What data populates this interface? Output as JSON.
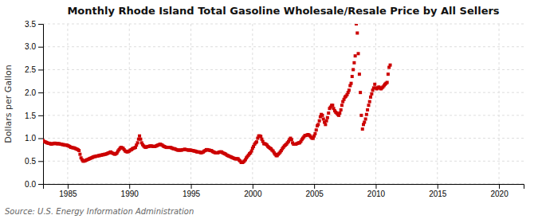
{
  "chart_data": {
    "type": "scatter",
    "title": "Monthly Rhode Island Total Gasoline Wholesale/Resale Price by All Sellers",
    "ylabel": "Dollars per Gallon",
    "annotations": [
      "Source: U.S. Energy Information Administration"
    ],
    "color": "#cc0000",
    "marker": "square",
    "grid": true,
    "xlim": [
      1983,
      2022
    ],
    "ylim": [
      0.0,
      3.5
    ],
    "xticks": [
      1985,
      1990,
      1995,
      2000,
      2005,
      2010,
      2015,
      2020
    ],
    "yticks": [
      {
        "value": 0.0,
        "label": "0.0"
      },
      0.5,
      {
        "value": 1.0,
        "label": "1.0"
      },
      1.5,
      {
        "value": 2.0,
        "label": "2.0"
      },
      2.5,
      {
        "value": 3.0,
        "label": "3.0"
      },
      3.5
    ],
    "x": [
      1983.0,
      1983.08,
      1983.17,
      1983.25,
      1983.33,
      1983.42,
      1983.5,
      1983.58,
      1983.67,
      1983.75,
      1983.83,
      1983.92,
      1984.0,
      1984.08,
      1984.17,
      1984.25,
      1984.33,
      1984.42,
      1984.5,
      1984.58,
      1984.67,
      1984.75,
      1984.83,
      1984.92,
      1985.0,
      1985.08,
      1985.17,
      1985.25,
      1985.33,
      1985.42,
      1985.5,
      1985.58,
      1985.67,
      1985.75,
      1985.83,
      1985.92,
      1986.0,
      1986.08,
      1986.17,
      1986.25,
      1986.33,
      1986.42,
      1986.5,
      1986.58,
      1986.67,
      1986.75,
      1986.83,
      1986.92,
      1987.0,
      1987.08,
      1987.17,
      1987.25,
      1987.33,
      1987.42,
      1987.5,
      1987.58,
      1987.67,
      1987.75,
      1987.83,
      1987.92,
      1988.0,
      1988.08,
      1988.17,
      1988.25,
      1988.33,
      1988.42,
      1988.5,
      1988.58,
      1988.67,
      1988.75,
      1988.83,
      1988.92,
      1989.0,
      1989.08,
      1989.17,
      1989.25,
      1989.33,
      1989.42,
      1989.5,
      1989.58,
      1989.67,
      1989.75,
      1989.83,
      1989.92,
      1990.0,
      1990.08,
      1990.17,
      1990.25,
      1990.33,
      1990.42,
      1990.5,
      1990.58,
      1990.67,
      1990.75,
      1990.83,
      1990.92,
      1991.0,
      1991.08,
      1991.17,
      1991.25,
      1991.33,
      1991.42,
      1991.5,
      1991.58,
      1991.67,
      1991.75,
      1991.83,
      1991.92,
      1992.0,
      1992.08,
      1992.17,
      1992.25,
      1992.33,
      1992.42,
      1992.5,
      1992.58,
      1992.67,
      1992.75,
      1992.83,
      1992.92,
      1993.0,
      1993.08,
      1993.17,
      1993.25,
      1993.33,
      1993.42,
      1993.5,
      1993.58,
      1993.67,
      1993.75,
      1993.83,
      1993.92,
      1994.0,
      1994.08,
      1994.17,
      1994.25,
      1994.33,
      1994.42,
      1994.5,
      1994.58,
      1994.67,
      1994.75,
      1994.83,
      1994.92,
      1995.0,
      1995.08,
      1995.17,
      1995.25,
      1995.33,
      1995.42,
      1995.5,
      1995.58,
      1995.67,
      1995.75,
      1995.83,
      1995.92,
      1996.0,
      1996.08,
      1996.17,
      1996.25,
      1996.33,
      1996.42,
      1996.5,
      1996.58,
      1996.67,
      1996.75,
      1996.83,
      1996.92,
      1997.0,
      1997.08,
      1997.17,
      1997.25,
      1997.33,
      1997.42,
      1997.5,
      1997.58,
      1997.67,
      1997.75,
      1997.83,
      1997.92,
      1998.0,
      1998.08,
      1998.17,
      1998.25,
      1998.33,
      1998.42,
      1998.5,
      1998.58,
      1998.67,
      1998.75,
      1998.83,
      1998.92,
      1999.0,
      1999.08,
      1999.17,
      1999.25,
      1999.33,
      1999.42,
      1999.5,
      1999.58,
      1999.67,
      1999.75,
      1999.83,
      1999.92,
      2000.0,
      2000.08,
      2000.17,
      2000.25,
      2000.33,
      2000.42,
      2000.5,
      2000.58,
      2000.67,
      2000.75,
      2000.83,
      2000.92,
      2001.0,
      2001.08,
      2001.17,
      2001.25,
      2001.33,
      2001.42,
      2001.5,
      2001.58,
      2001.67,
      2001.75,
      2001.83,
      2001.92,
      2002.0,
      2002.08,
      2002.17,
      2002.25,
      2002.33,
      2002.42,
      2002.5,
      2002.58,
      2002.67,
      2002.75,
      2002.83,
      2002.92,
      2003.0,
      2003.08,
      2003.17,
      2003.25,
      2003.33,
      2003.42,
      2003.5,
      2003.58,
      2003.67,
      2003.75,
      2003.83,
      2003.92,
      2004.0,
      2004.08,
      2004.17,
      2004.25,
      2004.33,
      2004.42,
      2004.5,
      2004.58,
      2004.67,
      2004.75,
      2004.83,
      2004.92,
      2005.0,
      2005.08,
      2005.17,
      2005.25,
      2005.33,
      2005.42,
      2005.5,
      2005.58,
      2005.67,
      2005.75,
      2005.83,
      2005.92,
      2006.0,
      2006.08,
      2006.17,
      2006.25,
      2006.33,
      2006.42,
      2006.5,
      2006.58,
      2006.67,
      2006.75,
      2006.83,
      2006.92,
      2007.0,
      2007.08,
      2007.17,
      2007.25,
      2007.33,
      2007.42,
      2007.5,
      2007.58,
      2007.67,
      2007.75,
      2007.83,
      2007.92,
      2008.0,
      2008.08,
      2008.17,
      2008.25,
      2008.33,
      2008.42,
      2008.5,
      2008.58,
      2008.67,
      2008.75,
      2008.83,
      2008.92,
      2009.0,
      2009.08,
      2009.17,
      2009.25,
      2009.33,
      2009.42,
      2009.5,
      2009.58,
      2009.67,
      2009.75,
      2009.83,
      2009.92,
      2010.0,
      2010.08,
      2010.17,
      2010.25,
      2010.33,
      2010.42,
      2010.5,
      2010.58,
      2010.67,
      2010.75,
      2010.83,
      2010.92,
      2011.0,
      2011.08,
      2011.17
    ],
    "values": [
      0.95,
      0.93,
      0.92,
      0.91,
      0.9,
      0.89,
      0.89,
      0.88,
      0.87,
      0.88,
      0.88,
      0.89,
      0.89,
      0.88,
      0.88,
      0.88,
      0.88,
      0.87,
      0.87,
      0.86,
      0.86,
      0.85,
      0.85,
      0.85,
      0.84,
      0.83,
      0.82,
      0.8,
      0.8,
      0.79,
      0.79,
      0.78,
      0.77,
      0.76,
      0.75,
      0.73,
      0.65,
      0.57,
      0.53,
      0.5,
      0.5,
      0.51,
      0.52,
      0.53,
      0.54,
      0.55,
      0.56,
      0.57,
      0.58,
      0.59,
      0.6,
      0.6,
      0.61,
      0.61,
      0.62,
      0.62,
      0.63,
      0.63,
      0.64,
      0.64,
      0.65,
      0.65,
      0.66,
      0.67,
      0.68,
      0.69,
      0.7,
      0.68,
      0.67,
      0.66,
      0.65,
      0.66,
      0.68,
      0.72,
      0.75,
      0.78,
      0.8,
      0.79,
      0.78,
      0.75,
      0.72,
      0.71,
      0.7,
      0.71,
      0.72,
      0.74,
      0.75,
      0.77,
      0.78,
      0.79,
      0.8,
      0.85,
      0.9,
      0.98,
      1.05,
      0.98,
      0.9,
      0.86,
      0.83,
      0.81,
      0.8,
      0.81,
      0.82,
      0.82,
      0.83,
      0.83,
      0.83,
      0.82,
      0.82,
      0.82,
      0.83,
      0.84,
      0.85,
      0.86,
      0.87,
      0.86,
      0.85,
      0.83,
      0.82,
      0.81,
      0.8,
      0.8,
      0.8,
      0.8,
      0.8,
      0.79,
      0.78,
      0.77,
      0.77,
      0.76,
      0.75,
      0.74,
      0.74,
      0.74,
      0.74,
      0.74,
      0.75,
      0.75,
      0.76,
      0.75,
      0.75,
      0.74,
      0.74,
      0.74,
      0.74,
      0.73,
      0.73,
      0.72,
      0.72,
      0.71,
      0.7,
      0.7,
      0.7,
      0.69,
      0.68,
      0.69,
      0.7,
      0.72,
      0.73,
      0.75,
      0.75,
      0.74,
      0.74,
      0.73,
      0.73,
      0.71,
      0.7,
      0.69,
      0.68,
      0.68,
      0.68,
      0.69,
      0.7,
      0.7,
      0.7,
      0.68,
      0.67,
      0.66,
      0.65,
      0.63,
      0.62,
      0.61,
      0.6,
      0.59,
      0.58,
      0.57,
      0.56,
      0.55,
      0.55,
      0.55,
      0.55,
      0.52,
      0.5,
      0.47,
      0.47,
      0.48,
      0.5,
      0.53,
      0.57,
      0.6,
      0.63,
      0.66,
      0.68,
      0.72,
      0.78,
      0.82,
      0.87,
      0.9,
      0.92,
      1.0,
      1.05,
      1.05,
      1.04,
      0.98,
      0.93,
      0.88,
      0.88,
      0.87,
      0.85,
      0.82,
      0.8,
      0.78,
      0.77,
      0.74,
      0.72,
      0.68,
      0.65,
      0.62,
      0.62,
      0.65,
      0.67,
      0.7,
      0.73,
      0.77,
      0.8,
      0.83,
      0.85,
      0.87,
      0.9,
      0.93,
      0.97,
      1.0,
      0.97,
      0.9,
      0.87,
      0.87,
      0.87,
      0.88,
      0.89,
      0.9,
      0.9,
      0.93,
      0.97,
      1.0,
      1.03,
      1.06,
      1.06,
      1.07,
      1.08,
      1.07,
      1.05,
      1.02,
      1.0,
      1.0,
      1.05,
      1.1,
      1.18,
      1.27,
      1.3,
      1.38,
      1.47,
      1.52,
      1.5,
      1.42,
      1.35,
      1.3,
      1.38,
      1.45,
      1.55,
      1.65,
      1.68,
      1.72,
      1.72,
      1.65,
      1.6,
      1.57,
      1.55,
      1.52,
      1.5,
      1.55,
      1.62,
      1.72,
      1.8,
      1.85,
      1.9,
      1.92,
      1.95,
      2.0,
      2.05,
      2.15,
      2.2,
      2.35,
      2.5,
      2.65,
      2.8,
      3.5,
      3.3,
      2.85,
      2.4,
      2.0,
      1.5,
      1.2,
      1.3,
      1.35,
      1.42,
      1.52,
      1.62,
      1.72,
      1.8,
      1.9,
      1.97,
      2.05,
      2.1,
      2.18,
      2.1,
      2.08,
      2.1,
      2.12,
      2.1,
      2.08,
      2.1,
      2.12,
      2.15,
      2.18,
      2.2,
      2.22,
      2.4,
      2.55,
      2.6
    ]
  }
}
